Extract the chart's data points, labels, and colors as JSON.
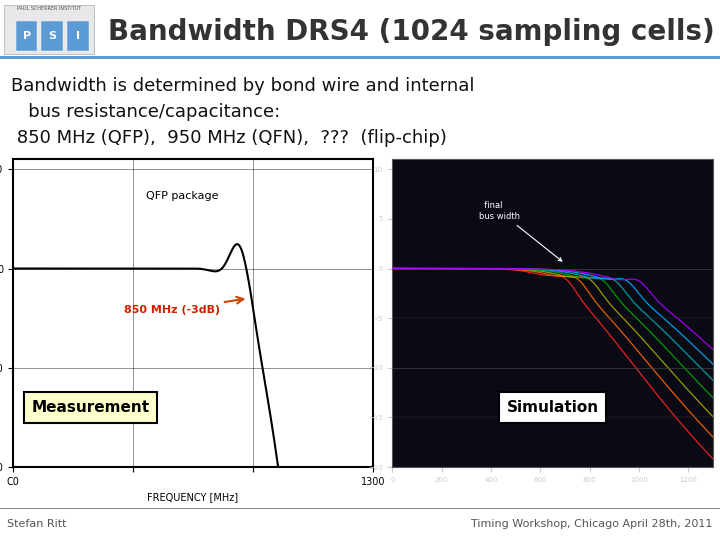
{
  "title": "Bandwidth DRS4 (1024 sampling cells)",
  "title_fontsize": 20,
  "title_color": "#333333",
  "title_fontweight": "bold",
  "header_bar_color": "#5b9bd5",
  "body_bg": "#ffffff",
  "text_lines": [
    "Bandwidth is determined by bond wire and internal",
    "   bus resistance/capacitance:",
    " 850 MHz (QFP),  950 MHz (QFN),  ???  (flip-chip)"
  ],
  "text_fontsize": 13,
  "text_color": "#111111",
  "footer_left": "Stefan Ritt",
  "footer_right": "Timing Workshop, Chicago April 28th, 2011",
  "footer_fontsize": 8,
  "footer_color": "#555555",
  "left_image_label": "Measurement",
  "right_image_label": "Simulation",
  "sim_colors": [
    "#ff2222",
    "#ff6600",
    "#aaaa00",
    "#00aa00",
    "#00aaaa",
    "#00aaff",
    "#aa00ff"
  ],
  "sim_f3db": [
    750,
    800,
    850,
    900,
    950,
    1000,
    1050
  ],
  "sim_peak_f": [
    700,
    750,
    800,
    850,
    900,
    950,
    1000
  ],
  "sim_peak_g": [
    1.0,
    1.0,
    1.0,
    1.0,
    1.0,
    1.0,
    1.0
  ]
}
